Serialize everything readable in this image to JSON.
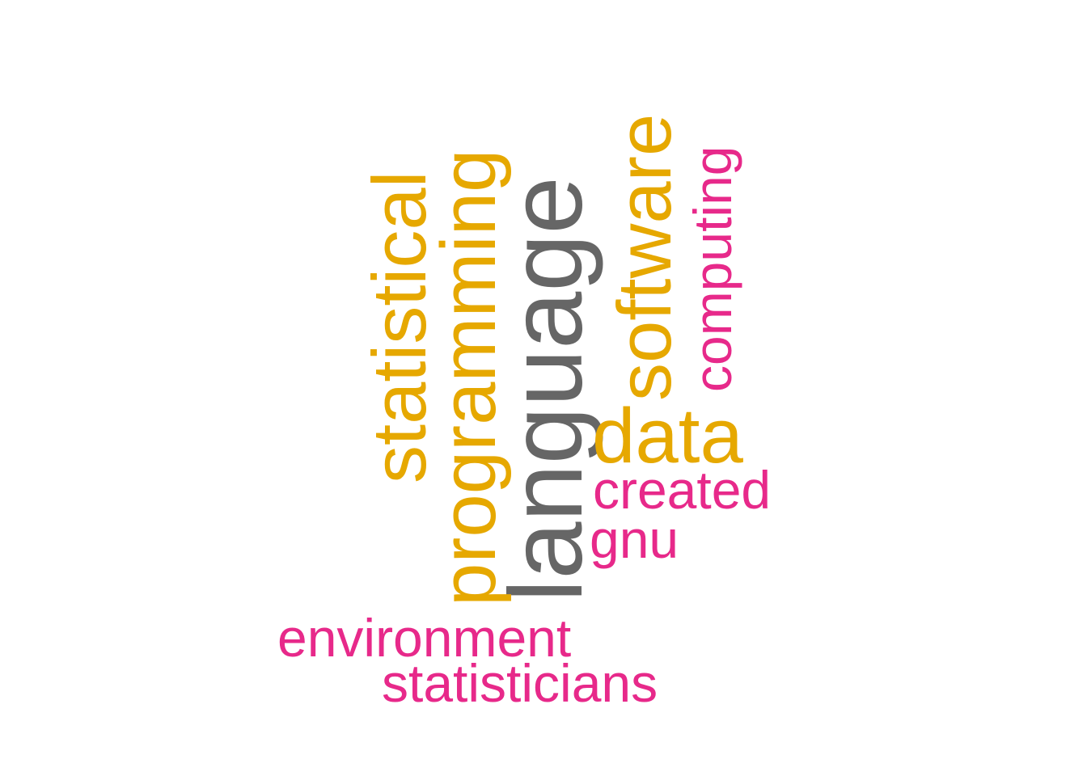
{
  "colors": {
    "background": "#ffffff",
    "gold": "#E6A800",
    "pink": "#E7298A",
    "gray": "#666666"
  },
  "words": {
    "language": "language",
    "programming": "programming",
    "statistical": "statistical",
    "software": "software",
    "data": "data",
    "computing": "computing",
    "created": "created",
    "gnu": "gnu",
    "environment": "environment",
    "statisticians": "statisticians"
  }
}
